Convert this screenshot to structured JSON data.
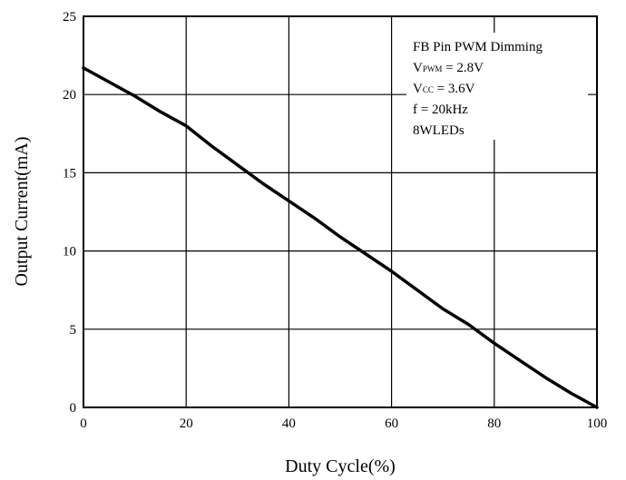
{
  "chart_data": {
    "type": "line",
    "title": "",
    "xlabel": "Duty Cycle(%)",
    "ylabel": "Output Current(mA)",
    "xlim": [
      0,
      100
    ],
    "ylim": [
      0,
      25
    ],
    "xticks": [
      0,
      20,
      40,
      60,
      80,
      100
    ],
    "yticks": [
      0,
      5,
      10,
      15,
      20,
      25
    ],
    "grid": true,
    "legend": "none",
    "line_color": "#000000",
    "series": [
      {
        "x": [
          0,
          5,
          10,
          15,
          20,
          25,
          30,
          35,
          40,
          45,
          50,
          55,
          60,
          65,
          70,
          75,
          80,
          85,
          90,
          95,
          100
        ],
        "y": [
          21.7,
          20.8,
          19.9,
          18.9,
          18.0,
          16.7,
          15.5,
          14.3,
          13.2,
          12.1,
          10.9,
          9.8,
          8.7,
          7.5,
          6.3,
          5.3,
          4.1,
          3.0,
          1.9,
          0.9,
          0
        ]
      }
    ],
    "annotation": {
      "line1": "FB Pin PWM Dimming",
      "line2_main": "V",
      "line2_sub": "PWM",
      "line2_rest": " = 2.8V",
      "line3_main": "V",
      "line3_sub": "CC",
      "line3_rest": " = 3.6V",
      "line4": "f = 20kHz",
      "line5": "8WLEDs"
    }
  }
}
